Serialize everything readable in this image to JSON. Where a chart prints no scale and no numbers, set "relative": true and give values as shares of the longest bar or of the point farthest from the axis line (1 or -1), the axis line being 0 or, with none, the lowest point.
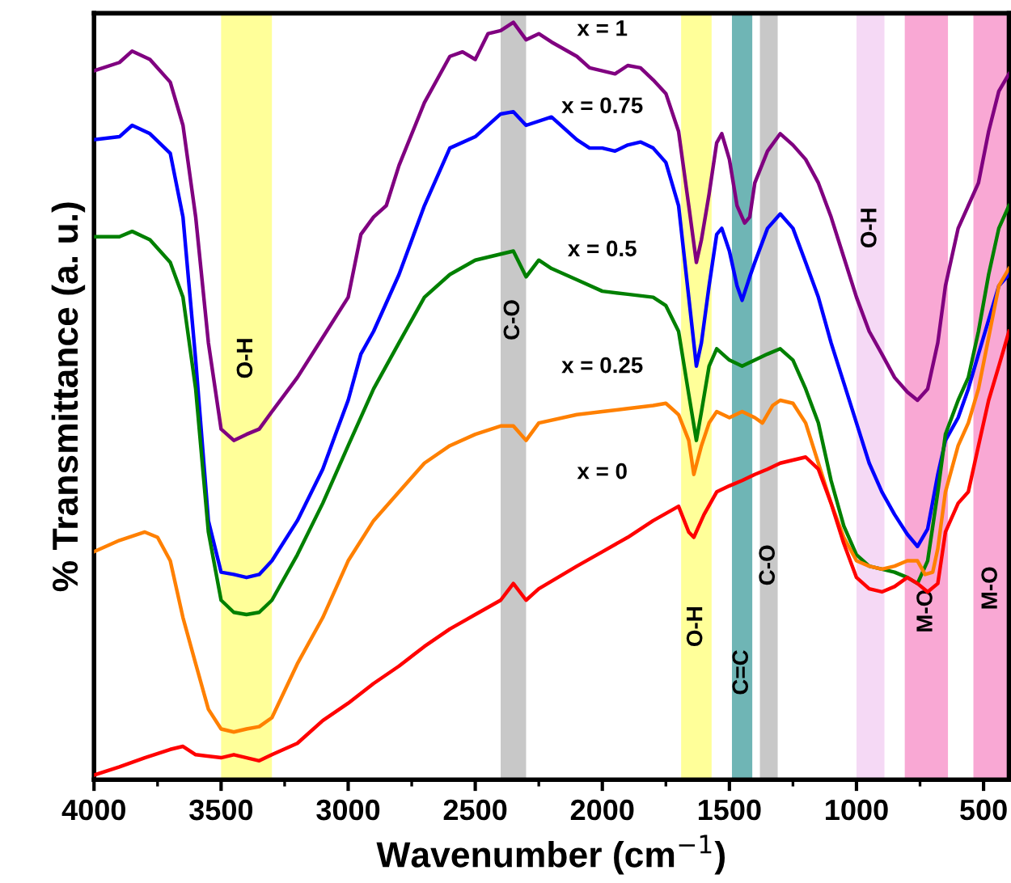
{
  "chart_data": {
    "type": "line",
    "relative": true,
    "xlabel": "Wavenumber (cm$^{−1}$)",
    "ylabel": "% Transmittance (a. u.)",
    "xlim": [
      4000,
      400
    ],
    "xticks": [
      4000,
      3500,
      3000,
      2500,
      2000,
      1500,
      1000,
      500
    ],
    "tick_labels": "x",
    "grid": false,
    "legend": false,
    "marker": "none",
    "line_style": "solid",
    "series": [
      {
        "name": "x = 1",
        "color": "#800080",
        "x": [
          4000,
          3900,
          3850,
          3780,
          3700,
          3650,
          3600,
          3550,
          3500,
          3450,
          3400,
          3350,
          3300,
          3200,
          3100,
          3000,
          2950,
          2900,
          2850,
          2800,
          2700,
          2600,
          2550,
          2500,
          2450,
          2400,
          2350,
          2300,
          2250,
          2200,
          2100,
          2050,
          2000,
          1950,
          1900,
          1850,
          1800,
          1750,
          1700,
          1660,
          1630,
          1610,
          1580,
          1550,
          1530,
          1500,
          1470,
          1440,
          1420,
          1400,
          1350,
          1300,
          1250,
          1200,
          1150,
          1100,
          1050,
          1000,
          950,
          900,
          850,
          800,
          760,
          720,
          680,
          650,
          600,
          560,
          520,
          480,
          440,
          400
        ],
        "values": [
          0.936,
          0.947,
          0.962,
          0.951,
          0.921,
          0.864,
          0.743,
          0.577,
          0.463,
          0.448,
          0.456,
          0.463,
          0.486,
          0.531,
          0.584,
          0.637,
          0.72,
          0.743,
          0.758,
          0.811,
          0.894,
          0.955,
          0.961,
          0.951,
          0.985,
          0.989,
          1,
          0.977,
          0.985,
          0.974,
          0.955,
          0.94,
          0.936,
          0.932,
          0.943,
          0.94,
          0.924,
          0.906,
          0.856,
          0.758,
          0.683,
          0.713,
          0.773,
          0.841,
          0.853,
          0.819,
          0.758,
          0.735,
          0.743,
          0.788,
          0.83,
          0.853,
          0.838,
          0.819,
          0.788,
          0.743,
          0.69,
          0.637,
          0.592,
          0.562,
          0.531,
          0.512,
          0.501,
          0.516,
          0.577,
          0.652,
          0.728,
          0.758,
          0.788,
          0.856,
          0.909,
          0.932
        ]
      },
      {
        "name": "x = 0.75",
        "color": "#0000ff",
        "x": [
          4000,
          3900,
          3850,
          3780,
          3700,
          3650,
          3600,
          3550,
          3500,
          3450,
          3400,
          3350,
          3300,
          3200,
          3100,
          3050,
          3000,
          2950,
          2900,
          2800,
          2700,
          2600,
          2500,
          2400,
          2350,
          2300,
          2200,
          2100,
          2050,
          2000,
          1950,
          1900,
          1850,
          1800,
          1750,
          1700,
          1660,
          1630,
          1610,
          1580,
          1550,
          1530,
          1500,
          1470,
          1450,
          1420,
          1400,
          1350,
          1300,
          1250,
          1200,
          1150,
          1100,
          1050,
          1000,
          950,
          900,
          850,
          800,
          760,
          720,
          680,
          650,
          600,
          560,
          520,
          480,
          440,
          400
        ],
        "values": [
          0.845,
          0.849,
          0.864,
          0.853,
          0.827,
          0.743,
          0.554,
          0.342,
          0.274,
          0.271,
          0.267,
          0.271,
          0.289,
          0.342,
          0.41,
          0.456,
          0.501,
          0.562,
          0.592,
          0.667,
          0.758,
          0.834,
          0.849,
          0.879,
          0.882,
          0.864,
          0.875,
          0.845,
          0.834,
          0.834,
          0.83,
          0.838,
          0.842,
          0.834,
          0.815,
          0.758,
          0.637,
          0.546,
          0.577,
          0.652,
          0.72,
          0.728,
          0.698,
          0.652,
          0.633,
          0.664,
          0.683,
          0.728,
          0.747,
          0.728,
          0.683,
          0.637,
          0.577,
          0.524,
          0.471,
          0.418,
          0.38,
          0.35,
          0.324,
          0.308,
          0.331,
          0.403,
          0.448,
          0.478,
          0.516,
          0.562,
          0.607,
          0.652,
          0.667
        ]
      },
      {
        "name": "x = 0.5",
        "color": "#008000",
        "x": [
          4000,
          3900,
          3850,
          3780,
          3700,
          3650,
          3600,
          3550,
          3500,
          3450,
          3400,
          3350,
          3300,
          3200,
          3100,
          3000,
          2900,
          2800,
          2700,
          2600,
          2500,
          2400,
          2350,
          2300,
          2250,
          2200,
          2100,
          2000,
          1900,
          1800,
          1750,
          1700,
          1660,
          1630,
          1610,
          1580,
          1550,
          1500,
          1450,
          1400,
          1350,
          1300,
          1250,
          1200,
          1150,
          1100,
          1050,
          1000,
          950,
          900,
          850,
          800,
          760,
          720,
          680,
          650,
          600,
          560,
          520,
          480,
          440,
          400
        ],
        "values": [
          0.717,
          0.717,
          0.724,
          0.713,
          0.683,
          0.637,
          0.516,
          0.327,
          0.237,
          0.221,
          0.218,
          0.221,
          0.237,
          0.297,
          0.365,
          0.441,
          0.516,
          0.577,
          0.637,
          0.667,
          0.686,
          0.694,
          0.698,
          0.664,
          0.686,
          0.675,
          0.66,
          0.645,
          0.641,
          0.637,
          0.626,
          0.592,
          0.509,
          0.448,
          0.486,
          0.546,
          0.569,
          0.554,
          0.546,
          0.554,
          0.562,
          0.569,
          0.554,
          0.516,
          0.471,
          0.395,
          0.335,
          0.297,
          0.282,
          0.278,
          0.274,
          0.267,
          0.259,
          0.289,
          0.38,
          0.456,
          0.501,
          0.531,
          0.592,
          0.667,
          0.728,
          0.758
        ]
      },
      {
        "name": "x = 0.25",
        "color": "#ff8000",
        "x": [
          4000,
          3900,
          3800,
          3750,
          3700,
          3650,
          3600,
          3550,
          3500,
          3450,
          3400,
          3350,
          3300,
          3200,
          3100,
          3000,
          2900,
          2800,
          2700,
          2600,
          2500,
          2400,
          2350,
          2300,
          2250,
          2100,
          2000,
          1900,
          1800,
          1750,
          1700,
          1660,
          1640,
          1610,
          1580,
          1550,
          1500,
          1450,
          1400,
          1370,
          1330,
          1300,
          1250,
          1200,
          1150,
          1100,
          1050,
          1000,
          950,
          900,
          850,
          800,
          760,
          730,
          700,
          680,
          650,
          600,
          560,
          520,
          480,
          440,
          400
        ],
        "values": [
          0.301,
          0.316,
          0.327,
          0.32,
          0.289,
          0.214,
          0.153,
          0.093,
          0.067,
          0.063,
          0.067,
          0.07,
          0.082,
          0.153,
          0.214,
          0.289,
          0.342,
          0.38,
          0.418,
          0.441,
          0.456,
          0.467,
          0.467,
          0.448,
          0.471,
          0.482,
          0.486,
          0.49,
          0.494,
          0.497,
          0.482,
          0.448,
          0.403,
          0.441,
          0.471,
          0.486,
          0.478,
          0.486,
          0.478,
          0.471,
          0.494,
          0.501,
          0.497,
          0.471,
          0.418,
          0.365,
          0.32,
          0.289,
          0.282,
          0.278,
          0.282,
          0.289,
          0.289,
          0.271,
          0.274,
          0.305,
          0.38,
          0.441,
          0.471,
          0.516,
          0.584,
          0.652,
          0.675
        ]
      },
      {
        "name": "x = 0",
        "color": "#ff0000",
        "x": [
          4000,
          3900,
          3800,
          3700,
          3650,
          3600,
          3500,
          3450,
          3400,
          3350,
          3300,
          3200,
          3100,
          3000,
          2900,
          2800,
          2700,
          2600,
          2500,
          2400,
          2350,
          2300,
          2250,
          2100,
          2000,
          1900,
          1800,
          1700,
          1660,
          1640,
          1600,
          1550,
          1500,
          1450,
          1400,
          1350,
          1300,
          1250,
          1200,
          1150,
          1100,
          1050,
          1000,
          950,
          900,
          850,
          800,
          760,
          720,
          680,
          650,
          600,
          560,
          520,
          480,
          440,
          400
        ],
        "values": [
          0.006,
          0.017,
          0.029,
          0.04,
          0.044,
          0.033,
          0.029,
          0.033,
          0.029,
          0.025,
          0.033,
          0.048,
          0.078,
          0.101,
          0.127,
          0.15,
          0.176,
          0.199,
          0.218,
          0.237,
          0.259,
          0.237,
          0.252,
          0.282,
          0.301,
          0.32,
          0.342,
          0.361,
          0.327,
          0.32,
          0.35,
          0.38,
          0.388,
          0.395,
          0.403,
          0.41,
          0.418,
          0.422,
          0.426,
          0.41,
          0.365,
          0.312,
          0.267,
          0.252,
          0.248,
          0.255,
          0.267,
          0.259,
          0.248,
          0.259,
          0.327,
          0.365,
          0.38,
          0.441,
          0.501,
          0.546,
          0.592
        ]
      }
    ],
    "bands": [
      {
        "axis": "x",
        "from": 3500,
        "to": 3300,
        "label": "O-H",
        "color": "#ffff99"
      },
      {
        "axis": "x",
        "from": 2400,
        "to": 2300,
        "label": "C-O",
        "color": "#c8c8c8"
      },
      {
        "axis": "x",
        "from": 1690,
        "to": 1570,
        "label": "O-H",
        "color": "#ffff99"
      },
      {
        "axis": "x",
        "from": 1490,
        "to": 1410,
        "label": "C=C",
        "color": "#6fb5b5"
      },
      {
        "axis": "x",
        "from": 1380,
        "to": 1310,
        "label": "C-O",
        "color": "#c8c8c8"
      },
      {
        "axis": "x",
        "from": 1000,
        "to": 890,
        "label": "O-H",
        "color": "#f5d9f5"
      },
      {
        "axis": "x",
        "from": 810,
        "to": 640,
        "label": "M-O",
        "color": "#f9a8d4"
      },
      {
        "axis": "x",
        "from": 540,
        "to": 400,
        "label": "M-O",
        "color": "#f9a8d4"
      }
    ]
  }
}
